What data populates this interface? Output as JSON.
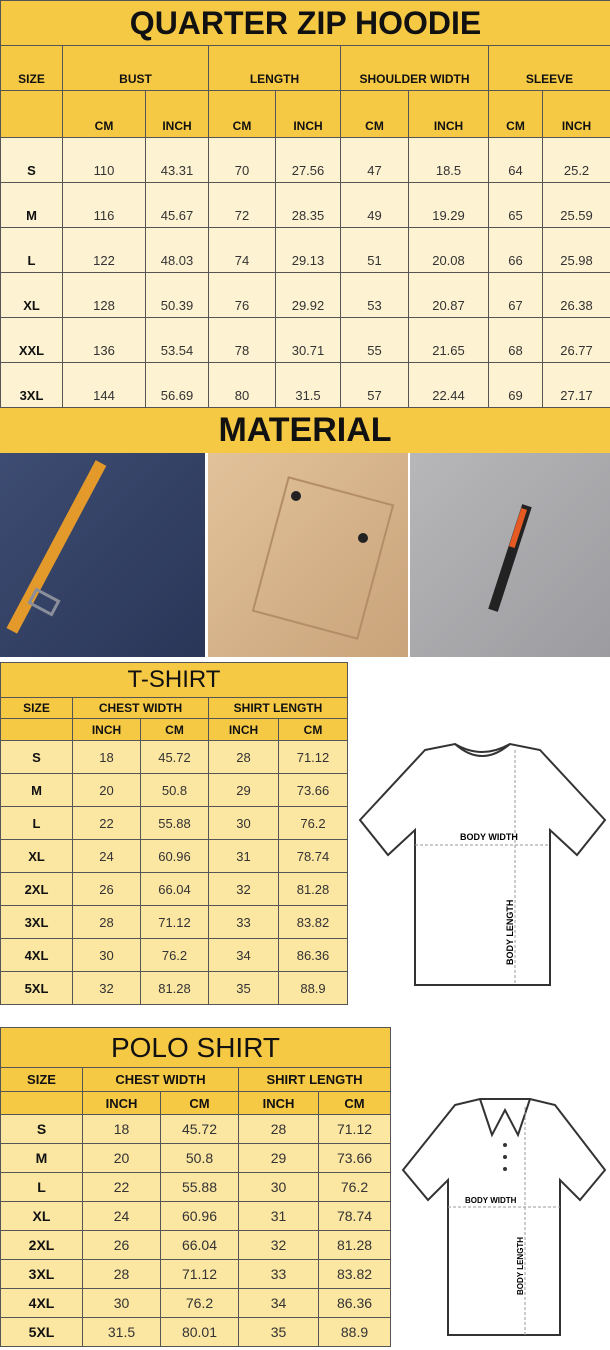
{
  "hoodie": {
    "title": "QUARTER ZIP HOODIE",
    "headers": [
      "SIZE",
      "BUST",
      "LENGTH",
      "SHOULDER WIDTH",
      "SLEEVE"
    ],
    "subheaders": [
      "CM",
      "INCH",
      "CM",
      "INCH",
      "CM",
      "INCH",
      "CM",
      "INCH"
    ],
    "rows": [
      [
        "S",
        "110",
        "43.31",
        "70",
        "27.56",
        "47",
        "18.5",
        "64",
        "25.2"
      ],
      [
        "M",
        "116",
        "45.67",
        "72",
        "28.35",
        "49",
        "19.29",
        "65",
        "25.59"
      ],
      [
        "L",
        "122",
        "48.03",
        "74",
        "29.13",
        "51",
        "20.08",
        "66",
        "25.98"
      ],
      [
        "XL",
        "128",
        "50.39",
        "76",
        "29.92",
        "53",
        "20.87",
        "67",
        "26.38"
      ],
      [
        "XXL",
        "136",
        "53.54",
        "78",
        "30.71",
        "55",
        "21.65",
        "68",
        "26.77"
      ],
      [
        "3XL",
        "144",
        "56.69",
        "80",
        "31.5",
        "57",
        "22.44",
        "69",
        "27.17"
      ]
    ]
  },
  "material": {
    "title": "MATERIAL",
    "photos": [
      "navy-fabric-orange-zipper",
      "khaki-fabric-pocket",
      "gray-fabric-zipper"
    ]
  },
  "tshirt": {
    "title": "T-SHIRT",
    "headers": [
      "SIZE",
      "CHEST WIDTH",
      "SHIRT LENGTH"
    ],
    "subheaders": [
      "INCH",
      "CM",
      "INCH",
      "CM"
    ],
    "rows": [
      [
        "S",
        "18",
        "45.72",
        "28",
        "71.12"
      ],
      [
        "M",
        "20",
        "50.8",
        "29",
        "73.66"
      ],
      [
        "L",
        "22",
        "55.88",
        "30",
        "76.2"
      ],
      [
        "XL",
        "24",
        "60.96",
        "31",
        "78.74"
      ],
      [
        "2XL",
        "26",
        "66.04",
        "32",
        "81.28"
      ],
      [
        "3XL",
        "28",
        "71.12",
        "33",
        "83.82"
      ],
      [
        "4XL",
        "30",
        "76.2",
        "34",
        "86.36"
      ],
      [
        "5XL",
        "32",
        "81.28",
        "35",
        "88.9"
      ]
    ],
    "diagram": {
      "width_label": "BODY WIDTH",
      "length_label": "BODY LENGTH"
    }
  },
  "polo": {
    "title": "POLO SHIRT",
    "headers": [
      "SIZE",
      "CHEST WIDTH",
      "SHIRT LENGTH"
    ],
    "subheaders": [
      "INCH",
      "CM",
      "INCH",
      "CM"
    ],
    "rows": [
      [
        "S",
        "18",
        "45.72",
        "28",
        "71.12"
      ],
      [
        "M",
        "20",
        "50.8",
        "29",
        "73.66"
      ],
      [
        "L",
        "22",
        "55.88",
        "30",
        "76.2"
      ],
      [
        "XL",
        "24",
        "60.96",
        "31",
        "78.74"
      ],
      [
        "2XL",
        "26",
        "66.04",
        "32",
        "81.28"
      ],
      [
        "3XL",
        "28",
        "71.12",
        "33",
        "83.82"
      ],
      [
        "4XL",
        "30",
        "76.2",
        "34",
        "86.36"
      ],
      [
        "5XL",
        "31.5",
        "80.01",
        "35",
        "88.9"
      ]
    ],
    "diagram": {
      "width_label": "BODY WIDTH",
      "length_label": "BODY LENGTH"
    }
  },
  "colors": {
    "header": "#f6c945",
    "row_light": "#fdf2d2",
    "row_yellow": "#fbe6a2"
  }
}
